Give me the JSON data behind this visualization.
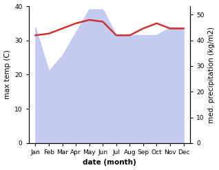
{
  "months": [
    "Jan",
    "Feb",
    "Mar",
    "Apr",
    "May",
    "Jun",
    "Jul",
    "Aug",
    "Sep",
    "Oct",
    "Nov",
    "Dec"
  ],
  "temp_max": [
    31.5,
    32.0,
    33.5,
    35.0,
    36.0,
    35.5,
    31.5,
    31.5,
    33.5,
    35.0,
    33.5,
    33.5
  ],
  "precip": [
    45,
    28,
    34,
    43,
    52,
    52,
    42,
    42,
    42,
    42,
    45,
    45
  ],
  "temp_color": "#cc3333",
  "precip_fill_color": "#c5caf0",
  "bg_color": "#ffffff",
  "ylim_temp": [
    0,
    40
  ],
  "ylim_precip": [
    0,
    53.3
  ],
  "right_yticks": [
    0,
    10,
    20,
    30,
    40,
    50
  ],
  "left_yticks": [
    0,
    10,
    20,
    30,
    40
  ],
  "ylabel_left": "max temp (C)",
  "ylabel_right": "med. precipitation (kg/m2)",
  "xlabel": "date (month)",
  "label_fontsize": 7.5,
  "tick_fontsize": 6.5
}
